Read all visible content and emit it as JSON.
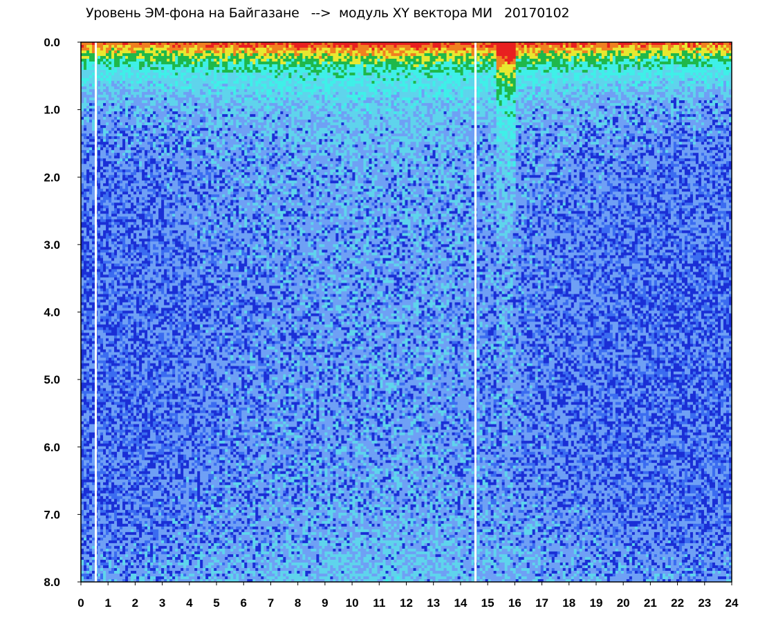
{
  "chart_data": {
    "type": "heatmap",
    "title": "Уровень ЭМ-фона на Байгазане   -->  модуль XY вектора МИ   20170102",
    "xlabel": "",
    "ylabel": "",
    "xlim": [
      0,
      24
    ],
    "ylim": [
      0.0,
      8.0
    ],
    "y_inverted": true,
    "x_ticks": [
      "0",
      "1",
      "2",
      "3",
      "4",
      "5",
      "6",
      "7",
      "8",
      "9",
      "10",
      "11",
      "12",
      "13",
      "14",
      "15",
      "16",
      "17",
      "18",
      "19",
      "20",
      "21",
      "22",
      "23",
      "24"
    ],
    "y_ticks": [
      "0.0",
      "1.0",
      "2.0",
      "3.0",
      "4.0",
      "5.0",
      "6.0",
      "7.0",
      "8.0"
    ],
    "colorscale": [
      "#1a2fd6",
      "#3b6cf0",
      "#6fa0f5",
      "#5fd4ec",
      "#3ff0e8",
      "#1fb84a",
      "#e8e830",
      "#f08020",
      "#e82020"
    ],
    "background_level": "low (blue) across most of the frequency range, higher toward 0.0 and the 8.0 edge",
    "high_band": {
      "y_range": [
        0.0,
        1.2
      ],
      "level": "high (cyan to red) near 0.0"
    },
    "gaps_x": [
      0.55,
      14.55
    ],
    "disturbance_x": [
      15.3,
      16.0
    ]
  }
}
